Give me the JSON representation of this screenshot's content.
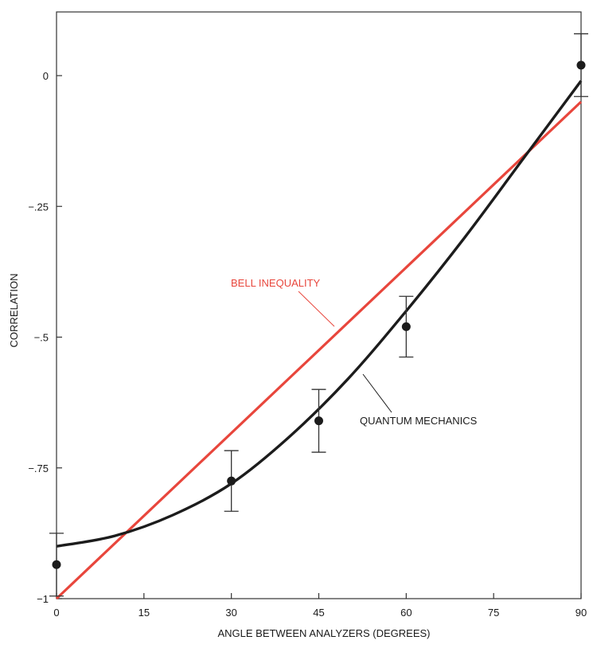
{
  "chart_data": {
    "type": "line",
    "title": "",
    "xlabel": "ANGLE BETWEEN ANALYZERS (DEGREES)",
    "ylabel": "CORRELATION",
    "xlim": [
      0,
      90
    ],
    "ylim": [
      -1,
      0.12
    ],
    "x_ticks": [
      0,
      15,
      30,
      45,
      60,
      75,
      90
    ],
    "x_tick_labels": [
      "0",
      "15",
      "30",
      "45",
      "60",
      "75",
      "90"
    ],
    "y_ticks": [
      0,
      -0.25,
      -0.5,
      -0.75,
      -1
    ],
    "y_tick_labels": [
      "0",
      "−.25",
      "−.5",
      "−.75",
      "−1"
    ],
    "grid": false,
    "series": [
      {
        "name": "BELL INEQUALITY",
        "kind": "line",
        "color": "#e8463c",
        "x": [
          0,
          90
        ],
        "y": [
          -1,
          -0.05
        ]
      },
      {
        "name": "QUANTUM MECHANICS",
        "kind": "curve",
        "color": "#1c1c1c",
        "x": [
          0,
          10,
          20,
          30,
          40,
          50,
          60,
          70,
          80,
          90
        ],
        "y": [
          -0.9,
          -0.88,
          -0.84,
          -0.78,
          -0.69,
          -0.58,
          -0.45,
          -0.31,
          -0.16,
          -0.01
        ]
      },
      {
        "name": "",
        "kind": "points",
        "color": "#1c1c1c",
        "x": [
          0,
          30,
          45,
          60,
          90
        ],
        "y": [
          -0.935,
          -0.775,
          -0.66,
          -0.48,
          0.02
        ],
        "error": [
          0.06,
          0.058,
          0.06,
          0.058,
          0.06
        ]
      }
    ],
    "annotations": [
      {
        "text": "BELL INEQUALITY",
        "color": "#e8463c",
        "series": 0,
        "x": 45,
        "y": -0.55
      },
      {
        "text": "QUANTUM MECHANICS",
        "color": "#1c1c1c",
        "series": 1,
        "x": 53,
        "y": -0.66
      }
    ]
  }
}
